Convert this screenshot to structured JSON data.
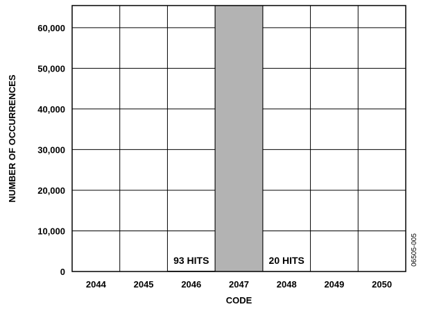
{
  "chart_data": {
    "type": "bar",
    "categories": [
      "2044",
      "2045",
      "2046",
      "2047",
      "2048",
      "2049",
      "2050"
    ],
    "values": [
      0,
      0,
      93,
      65436,
      20,
      0,
      0
    ],
    "xlabel": "CODE",
    "ylabel": "NUMBER OF OCCURRENCES",
    "ylim": [
      0,
      65436
    ],
    "yticks": [
      0,
      10000,
      20000,
      30000,
      40000,
      50000,
      60000
    ],
    "ytick_labels": [
      "0",
      "10,000",
      "20,000",
      "30,000",
      "40,000",
      "50,000",
      "60,000"
    ],
    "grid": true,
    "bar_color": "#b3b3b3",
    "annotations": [
      {
        "category": "2046",
        "text": "93 HITS"
      },
      {
        "category": "2048",
        "text": "20 HITS"
      }
    ],
    "figure_id": "06505-005"
  }
}
